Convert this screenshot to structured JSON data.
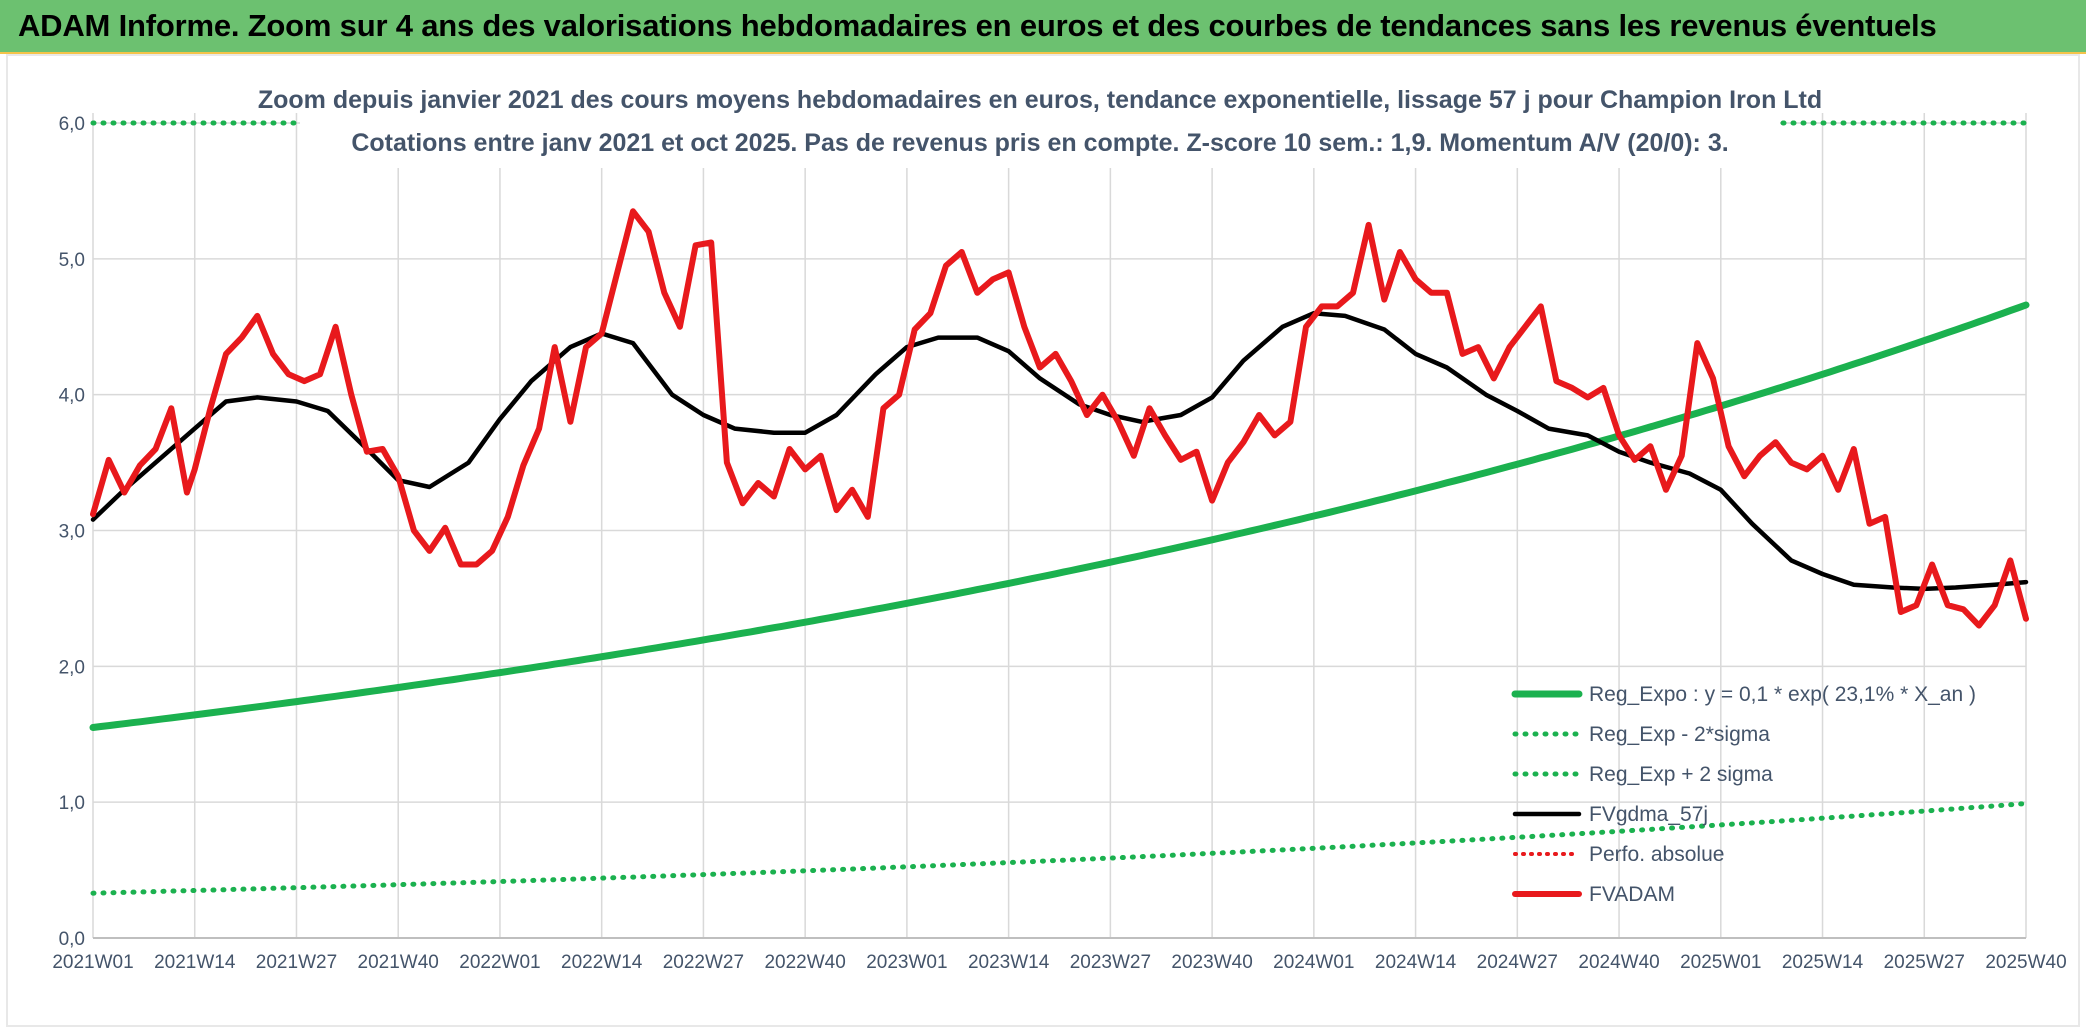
{
  "header": {
    "title": "ADAM Informe. Zoom sur 4 ans des valorisations hebdomadaires en euros et des courbes de tendances sans les revenus éventuels"
  },
  "colors": {
    "header_bg": "#6cc170",
    "header_border": "#f4c34a",
    "reg_expo": "#1bb14f",
    "fvgdma": "#000000",
    "fvadam": "#e8191c",
    "perfo": "#e8191c",
    "text": "#44546a"
  },
  "chart_data": {
    "type": "line",
    "title": "Zoom depuis janvier 2021 des cours moyens hebdomadaires en euros, tendance exponentielle, lissage 57 j pour Champion Iron Ltd",
    "subtitle": "Cotations entre janv 2021 et oct 2025. Pas de revenus pris en compte. Z-score 10 sem.: 1,9. Momentum A/V (20/0): 3.",
    "ylim": [
      0,
      6
    ],
    "y_ticks": [
      "0,0",
      "1,0",
      "2,0",
      "3,0",
      "4,0",
      "5,0",
      "6,0"
    ],
    "x_ticks": [
      "2021W01",
      "2021W14",
      "2021W27",
      "2021W40",
      "2022W01",
      "2022W14",
      "2022W27",
      "2022W40",
      "2023W01",
      "2023W14",
      "2023W27",
      "2023W40",
      "2024W01",
      "2024W14",
      "2024W27",
      "2024W40",
      "2025W01",
      "2025W14",
      "2025W27",
      "2025W40"
    ],
    "grid": true,
    "legend_position": "bottom-right",
    "series": [
      {
        "name": "Reg_Expo : y = 0,1 * exp( 23,1% *  X_an )",
        "style": "solid-thick",
        "x": [
          0,
          247
        ],
        "values": [
          1.55,
          4.66
        ]
      },
      {
        "name": "Reg_Exp - 2*sigma",
        "style": "dotted",
        "x": [
          0,
          247
        ],
        "values": [
          0.33,
          0.99
        ]
      },
      {
        "name": "Reg_Exp + 2 sigma",
        "style": "dotted",
        "x": [
          0,
          247
        ],
        "values": [
          6.0,
          6.0
        ]
      },
      {
        "name": "FVgdma_57j",
        "style": "solid",
        "x": [
          0,
          4,
          8,
          13,
          17,
          21,
          26,
          30,
          35,
          39,
          43,
          48,
          52,
          56,
          61,
          65,
          69,
          74,
          78,
          82,
          87,
          91,
          95,
          100,
          104,
          108,
          113,
          117,
          121,
          126,
          130,
          134,
          139,
          143,
          147,
          152,
          156,
          160,
          165,
          169,
          173,
          178,
          182,
          186,
          191,
          195,
          199,
          204,
          208,
          212,
          217,
          221,
          225,
          230,
          234,
          238,
          243,
          247
        ],
        "values": [
          3.08,
          3.3,
          3.5,
          3.75,
          3.95,
          3.98,
          3.95,
          3.88,
          3.6,
          3.37,
          3.32,
          3.5,
          3.82,
          4.1,
          4.35,
          4.45,
          4.38,
          4.0,
          3.85,
          3.75,
          3.72,
          3.72,
          3.85,
          4.15,
          4.35,
          4.42,
          4.42,
          4.32,
          4.12,
          3.93,
          3.85,
          3.8,
          3.85,
          3.98,
          4.25,
          4.5,
          4.6,
          4.58,
          4.48,
          4.3,
          4.2,
          4.0,
          3.88,
          3.75,
          3.7,
          3.58,
          3.5,
          3.42,
          3.3,
          3.05,
          2.78,
          2.68,
          2.6,
          2.58,
          2.57,
          2.58,
          2.6,
          2.62
        ]
      },
      {
        "name": "Perfo. absolue",
        "style": "dotted",
        "x": [],
        "values": []
      },
      {
        "name": "FVADAM",
        "style": "solid-thick",
        "x": [
          0,
          2,
          4,
          6,
          8,
          10,
          12,
          13,
          15,
          17,
          19,
          21,
          23,
          25,
          27,
          29,
          31,
          33,
          35,
          37,
          39,
          41,
          43,
          45,
          47,
          49,
          51,
          53,
          55,
          57,
          59,
          61,
          63,
          65,
          67,
          69,
          71,
          73,
          75,
          77,
          79,
          81,
          83,
          85,
          87,
          89,
          91,
          93,
          95,
          97,
          99,
          101,
          103,
          105,
          107,
          109,
          111,
          113,
          115,
          117,
          119,
          121,
          123,
          125,
          127,
          129,
          131,
          133,
          135,
          137,
          139,
          141,
          143,
          145,
          147,
          149,
          151,
          153,
          155,
          157,
          159,
          161,
          163,
          165,
          167,
          169,
          171,
          173,
          175,
          177,
          179,
          181,
          183,
          185,
          187,
          189,
          191,
          193,
          195,
          197,
          199,
          201,
          203,
          205,
          207,
          209,
          211,
          213,
          215,
          217,
          219,
          221,
          223,
          225,
          227,
          229,
          231,
          233,
          235,
          237,
          239,
          241,
          243,
          245,
          247
        ],
        "values": [
          3.12,
          3.52,
          3.28,
          3.48,
          3.6,
          3.9,
          3.28,
          3.45,
          3.9,
          4.3,
          4.42,
          4.58,
          4.3,
          4.15,
          4.1,
          4.15,
          4.5,
          4.0,
          3.58,
          3.6,
          3.4,
          3.0,
          2.85,
          3.02,
          2.75,
          2.75,
          2.85,
          3.1,
          3.48,
          3.75,
          4.35,
          3.8,
          4.35,
          4.45,
          4.9,
          5.35,
          5.2,
          4.75,
          4.5,
          5.1,
          5.12,
          3.5,
          3.2,
          3.35,
          3.25,
          3.6,
          3.45,
          3.55,
          3.15,
          3.3,
          3.1,
          3.9,
          4.0,
          4.48,
          4.6,
          4.95,
          5.05,
          4.75,
          4.85,
          4.9,
          4.5,
          4.2,
          4.3,
          4.1,
          3.85,
          4.0,
          3.8,
          3.55,
          3.9,
          3.7,
          3.52,
          3.58,
          3.22,
          3.5,
          3.65,
          3.85,
          3.7,
          3.8,
          4.5,
          4.65,
          4.65,
          4.75,
          5.25,
          4.7,
          5.05,
          4.85,
          4.75,
          4.75,
          4.3,
          4.35,
          4.12,
          4.35,
          4.5,
          4.65,
          4.1,
          4.05,
          3.98,
          4.05,
          3.7,
          3.52,
          3.62,
          3.3,
          3.55,
          4.38,
          4.12,
          3.62,
          3.4,
          3.55,
          3.65,
          3.5,
          3.45,
          3.55,
          3.3,
          3.6,
          3.05,
          3.1,
          2.4,
          2.45,
          2.75,
          2.45,
          2.42,
          2.3,
          2.45,
          2.78,
          2.35
        ]
      }
    ]
  }
}
